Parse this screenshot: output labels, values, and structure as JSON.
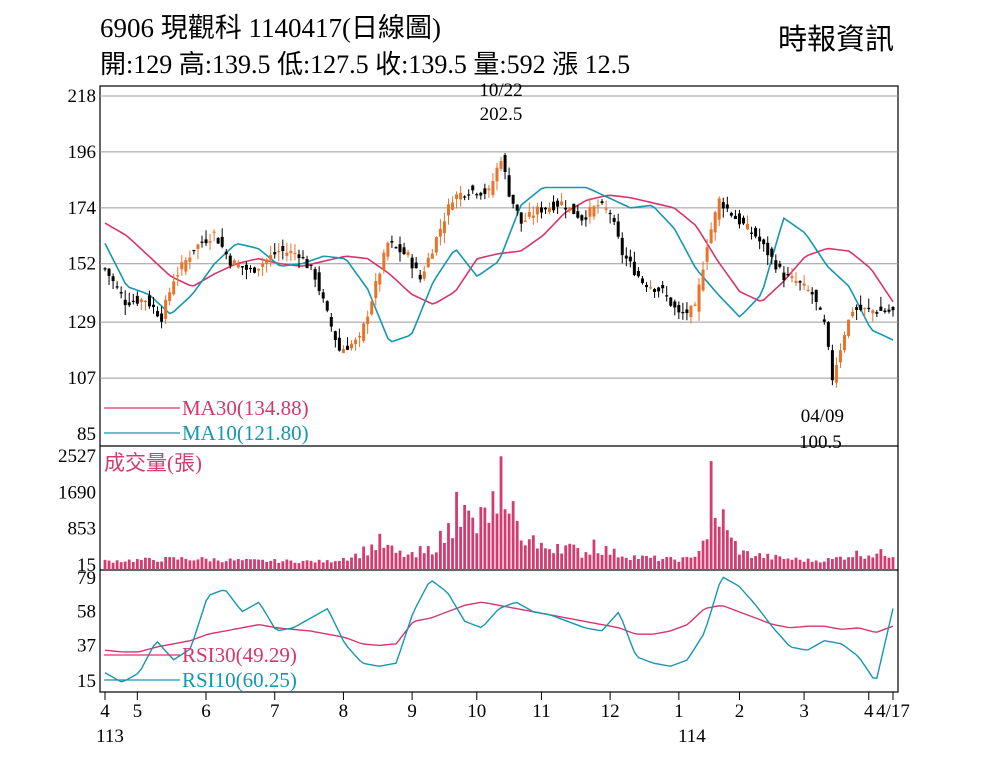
{
  "header": {
    "title": "6906  現觀科 1140417(日線圖)",
    "ohlc": "開:129 高:139.5 低:127.5 收:139.5 量:592 漲 12.5",
    "source": "時報資訊"
  },
  "chart_data": [
    {
      "type": "candlestick",
      "panel": "price",
      "yticks": [
        218,
        196,
        174,
        152,
        129,
        107,
        85
      ],
      "ylim": [
        85,
        218
      ],
      "grid": true,
      "annotations": [
        {
          "date_label": "10/22",
          "value_label": "202.5",
          "kind": "high"
        },
        {
          "date_label": "04/09",
          "value_label": "100.5",
          "kind": "low"
        }
      ],
      "legend": [
        {
          "label": "MA30(134.88)",
          "color": "#d6356e"
        },
        {
          "label": "MA10(121.80)",
          "color": "#1597b0"
        }
      ],
      "anchors": [
        [
          0,
          150
        ],
        [
          5,
          137
        ],
        [
          10,
          138
        ],
        [
          14,
          131
        ],
        [
          17,
          146
        ],
        [
          22,
          158
        ],
        [
          27,
          164
        ],
        [
          31,
          153
        ],
        [
          36,
          149
        ],
        [
          43,
          157
        ],
        [
          48,
          156
        ],
        [
          52,
          147
        ],
        [
          55,
          132
        ],
        [
          58,
          118
        ],
        [
          63,
          122
        ],
        [
          66,
          138
        ],
        [
          70,
          160
        ],
        [
          75,
          155
        ],
        [
          78,
          146
        ],
        [
          81,
          158
        ],
        [
          86,
          178
        ],
        [
          90,
          181
        ],
        [
          95,
          180
        ],
        [
          98,
          194
        ],
        [
          100,
          180
        ],
        [
          103,
          168
        ],
        [
          107,
          173
        ],
        [
          113,
          176
        ],
        [
          118,
          170
        ],
        [
          122,
          175
        ],
        [
          125,
          172
        ],
        [
          128,
          156
        ],
        [
          133,
          145
        ],
        [
          138,
          141
        ],
        [
          142,
          132
        ],
        [
          146,
          134
        ],
        [
          149,
          160
        ],
        [
          152,
          177
        ],
        [
          156,
          170
        ],
        [
          161,
          163
        ],
        [
          165,
          154
        ],
        [
          168,
          147
        ],
        [
          171,
          145
        ],
        [
          175,
          140
        ],
        [
          178,
          128
        ],
        [
          180,
          107
        ],
        [
          183,
          125
        ],
        [
          185,
          134
        ]
      ],
      "series": [
        {
          "name": "MA30",
          "values": [
            168,
            163,
            155,
            147,
            143,
            148,
            152,
            154,
            152,
            151,
            153,
            155,
            154,
            148,
            140,
            136,
            141,
            154,
            156,
            157,
            163,
            172,
            177,
            179,
            178,
            176,
            174,
            167,
            153,
            141,
            137,
            145,
            155,
            158,
            157,
            150,
            137
          ]
        },
        {
          "name": "MA10",
          "values": [
            160,
            143,
            140,
            132,
            140,
            152,
            160,
            158,
            151,
            152,
            155,
            154,
            142,
            121,
            124,
            145,
            158,
            147,
            153,
            175,
            182,
            182,
            182,
            178,
            174,
            175,
            166,
            150,
            140,
            131,
            140,
            170,
            164,
            151,
            143,
            126,
            122
          ]
        }
      ]
    },
    {
      "type": "bar",
      "panel": "volume",
      "label": "成交量(張)",
      "yticks": [
        2527,
        1690,
        853,
        15
      ],
      "ylim": [
        15,
        2527
      ],
      "anchors": [
        [
          0,
          110
        ],
        [
          20,
          170
        ],
        [
          35,
          120
        ],
        [
          55,
          100
        ],
        [
          62,
          250
        ],
        [
          68,
          550
        ],
        [
          72,
          300
        ],
        [
          78,
          200
        ],
        [
          84,
          700
        ],
        [
          88,
          1300
        ],
        [
          92,
          900
        ],
        [
          98,
          1700
        ],
        [
          100,
          1700
        ],
        [
          102,
          900
        ],
        [
          107,
          400
        ],
        [
          113,
          500
        ],
        [
          118,
          300
        ],
        [
          122,
          450
        ],
        [
          126,
          300
        ],
        [
          132,
          200
        ],
        [
          140,
          150
        ],
        [
          145,
          160
        ],
        [
          148,
          600
        ],
        [
          150,
          1000
        ],
        [
          152,
          850
        ],
        [
          154,
          700
        ],
        [
          158,
          300
        ],
        [
          165,
          200
        ],
        [
          175,
          120
        ],
        [
          180,
          150
        ],
        [
          185,
          280
        ]
      ],
      "peaks": [
        [
          78,
          450
        ],
        [
          87,
          1700
        ],
        [
          93,
          1350
        ],
        [
          97,
          1200
        ],
        [
          98,
          2520
        ],
        [
          99,
          1300
        ],
        [
          100,
          1200
        ],
        [
          106,
          700
        ],
        [
          112,
          500
        ],
        [
          121,
          600
        ],
        [
          150,
          2410
        ],
        [
          151,
          1100
        ],
        [
          153,
          1300
        ]
      ]
    },
    {
      "type": "line",
      "panel": "rsi",
      "yticks": [
        79,
        58,
        37,
        15
      ],
      "ylim": [
        8,
        84
      ],
      "legend": [
        {
          "label": "RSI30(49.29)",
          "color": "#d6356e"
        },
        {
          "label": "RSI10(60.25)",
          "color": "#1597b0"
        }
      ],
      "series": [
        {
          "name": "RSI30",
          "values": [
            34,
            33,
            33,
            36,
            38,
            40,
            44,
            46,
            48,
            50,
            48,
            47,
            46,
            44,
            42,
            38,
            37,
            38,
            52,
            54,
            58,
            62,
            64,
            62,
            60,
            58,
            56,
            54,
            52,
            50,
            48,
            44,
            44,
            46,
            50,
            60,
            62,
            58,
            54,
            50,
            48,
            49,
            49,
            47,
            48,
            45,
            49
          ]
        },
        {
          "name": "RSI10",
          "values": [
            20,
            14,
            20,
            40,
            28,
            35,
            68,
            72,
            58,
            64,
            46,
            48,
            54,
            60,
            38,
            26,
            24,
            26,
            58,
            78,
            70,
            52,
            48,
            60,
            64,
            58,
            56,
            52,
            48,
            46,
            58,
            30,
            26,
            24,
            28,
            45,
            80,
            74,
            62,
            48,
            36,
            34,
            40,
            38,
            30,
            14,
            60
          ]
        }
      ]
    }
  ],
  "x_axis": {
    "months": [
      {
        "label": "4",
        "x": 0
      },
      {
        "label": "5",
        "x": 8
      },
      {
        "label": "6",
        "x": 25
      },
      {
        "label": "7",
        "x": 42
      },
      {
        "label": "8",
        "x": 59
      },
      {
        "label": "9",
        "x": 76
      },
      {
        "label": "10",
        "x": 92
      },
      {
        "label": "11",
        "x": 108
      },
      {
        "label": "12",
        "x": 125
      },
      {
        "label": "1",
        "x": 142
      },
      {
        "label": "2",
        "x": 157
      },
      {
        "label": "3",
        "x": 173
      },
      {
        "label": "4",
        "x": 189
      },
      {
        "label": "4/17",
        "x": 195
      }
    ],
    "years": [
      {
        "label": "113",
        "x": 0
      },
      {
        "label": "114",
        "x": 144
      }
    ]
  },
  "colors": {
    "up": "#e8742c",
    "down": "#000000",
    "volume": "#d63a6f",
    "ma30": "#d6356e",
    "ma10": "#1597b0",
    "grid": "#9a9a9a"
  }
}
